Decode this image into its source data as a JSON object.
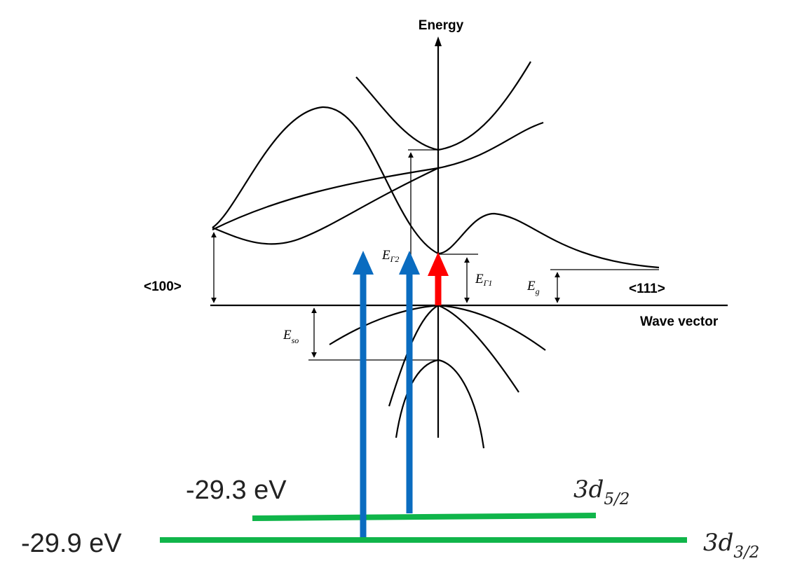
{
  "axes": {
    "energy_label": "Energy",
    "wave_vector_label": "Wave vector",
    "dir_100": "<100>",
    "dir_111": "<111>"
  },
  "gap_labels": {
    "E_G2": {
      "main": "E",
      "sub": "Γ2"
    },
    "E_G1": {
      "main": "E",
      "sub": "Γ1"
    },
    "E_g": {
      "main": "E",
      "sub": "g"
    },
    "E_so": {
      "main": "E",
      "sub": "so"
    }
  },
  "core_levels": [
    {
      "energy_label": "-29.3 eV",
      "orbital": "3d",
      "subscript": "5/2",
      "color": "#10b54a"
    },
    {
      "energy_label": "-29.9 eV",
      "orbital": "3d",
      "subscript": "3/2",
      "color": "#10b54a"
    }
  ],
  "colors": {
    "core_level": "#10b54a",
    "transition_blue": "#0a6cc0",
    "transition_red": "#ff0000"
  }
}
